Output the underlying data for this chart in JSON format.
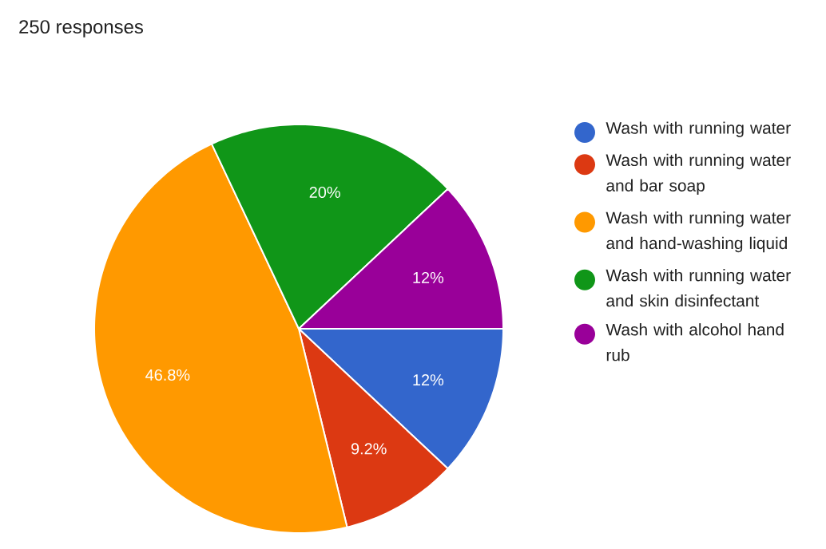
{
  "chart_data": {
    "type": "pie",
    "title": "250 responses",
    "categories": [
      "Wash with running water",
      "Wash with running water and bar soap",
      "Wash with running water and hand-washing liquid",
      "Wash with running water and skin disinfectant",
      "Wash with alcohol hand rub"
    ],
    "values": [
      12,
      9.2,
      46.8,
      20,
      12
    ],
    "value_labels": [
      "12%",
      "9.2%",
      "46.8%",
      "20%",
      "12%"
    ],
    "colors": [
      "#3366cc",
      "#dc3912",
      "#ff9900",
      "#109618",
      "#990099"
    ],
    "legend": "right"
  }
}
